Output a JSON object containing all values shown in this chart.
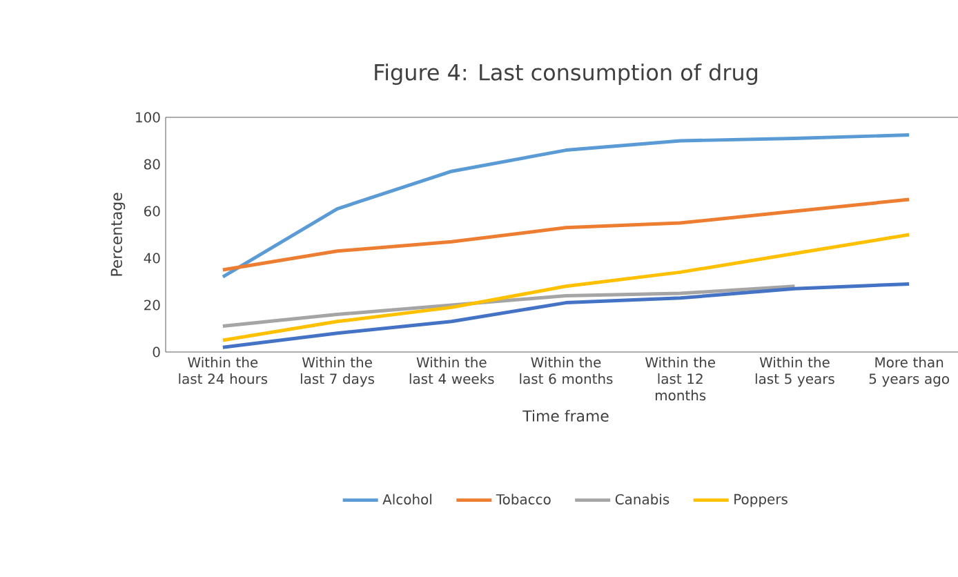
{
  "chart_data": {
    "type": "line",
    "title": "Figure 4: Last consumption of drug",
    "xlabel": "Time frame",
    "ylabel": "Percentage",
    "categories": [
      "Within the last 24 hours",
      "Within the last 7 days",
      "Within the last 4 weeks",
      "Within the last 6 months",
      "Within the last 12 months",
      "Within the last 5 years",
      "More than 5 years ago"
    ],
    "series": [
      {
        "name": "Alcohol",
        "color": "#5b9bd5",
        "values": [
          32,
          61,
          77,
          86,
          90,
          91,
          92.5
        ]
      },
      {
        "name": "Tobacco",
        "color": "#ed7d31",
        "values": [
          35,
          43,
          47,
          53,
          55,
          60,
          65
        ]
      },
      {
        "name": "Canabis",
        "color": "#a5a5a5",
        "values": [
          11,
          16,
          20,
          24,
          25,
          28,
          null
        ]
      },
      {
        "name": "Poppers",
        "color": "#ffc000",
        "values": [
          5,
          13,
          19,
          28,
          34,
          42,
          50
        ]
      },
      {
        "color": "#4472c4",
        "values": [
          2,
          8,
          13,
          21,
          23,
          27,
          29
        ]
      }
    ],
    "ylim": [
      0,
      100
    ],
    "yticks": [
      0,
      20,
      40,
      60,
      80,
      100
    ],
    "grid": false,
    "legend": "bottom",
    "marker": "none",
    "line_style": "solid"
  }
}
